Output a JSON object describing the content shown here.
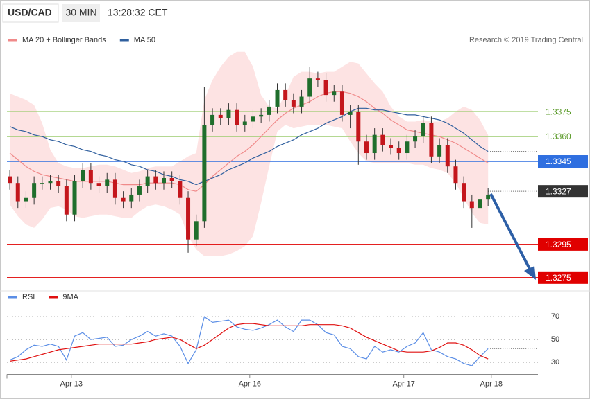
{
  "header": {
    "symbol": "USD/CAD",
    "interval": "30 MIN",
    "time": "13:28:32 CET",
    "credit": "Research © 2019 Trading Central"
  },
  "chart_data": [
    {
      "type": "candlestick",
      "xlim": [
        -0.35,
        65.15
      ],
      "ylim": [
        1.3267,
        1.3413
      ],
      "up_color": "#1f6e2c",
      "down_color": "#c4161c",
      "open": [
        1.3336,
        1.3332,
        1.3321,
        1.3323,
        1.3332,
        1.3332,
        1.3333,
        1.333,
        1.3313,
        1.3333,
        1.334,
        1.3332,
        1.333,
        1.3334,
        1.3323,
        1.3321,
        1.3325,
        1.333,
        1.3336,
        1.3332,
        1.3335,
        1.3333,
        1.3323,
        1.3298,
        1.3309,
        1.3367,
        1.3373,
        1.3371,
        1.3376,
        1.3367,
        1.3369,
        1.3372,
        1.3373,
        1.3378,
        1.3388,
        1.3382,
        1.3378,
        1.3384,
        1.3395,
        1.3394,
        1.3385,
        1.3387,
        1.3373,
        1.3375,
        1.3357,
        1.335,
        1.3361,
        1.3355,
        1.3353,
        1.335,
        1.3357,
        1.336,
        1.3368,
        1.3348,
        1.3355,
        1.3342,
        1.3332,
        1.3321,
        1.3317,
        1.3322
      ],
      "high": [
        1.334,
        1.3336,
        1.3327,
        1.3336,
        1.3336,
        1.3337,
        1.3337,
        1.3334,
        1.3337,
        1.3344,
        1.3344,
        1.3336,
        1.3338,
        1.3338,
        1.3327,
        1.3329,
        1.3334,
        1.334,
        1.334,
        1.3339,
        1.3339,
        1.3337,
        1.3327,
        1.3313,
        1.339,
        1.3377,
        1.3377,
        1.338,
        1.338,
        1.3373,
        1.3376,
        1.3377,
        1.3382,
        1.3392,
        1.3392,
        1.3386,
        1.3388,
        1.3402,
        1.3399,
        1.3398,
        1.3391,
        1.3391,
        1.3379,
        1.3379,
        1.3361,
        1.3365,
        1.3365,
        1.3359,
        1.3357,
        1.3361,
        1.3364,
        1.3372,
        1.3372,
        1.3359,
        1.3359,
        1.3346,
        1.3336,
        1.3325,
        1.3326,
        1.3329
      ],
      "low": [
        1.3328,
        1.3317,
        1.3317,
        1.3319,
        1.3328,
        1.3328,
        1.3326,
        1.3309,
        1.3309,
        1.3329,
        1.3328,
        1.3326,
        1.3326,
        1.3319,
        1.3317,
        1.3317,
        1.3321,
        1.3326,
        1.3328,
        1.3328,
        1.3329,
        1.3319,
        1.329,
        1.3294,
        1.3305,
        1.3363,
        1.3367,
        1.3367,
        1.3363,
        1.3363,
        1.3365,
        1.3368,
        1.3369,
        1.3374,
        1.3378,
        1.3374,
        1.3374,
        1.338,
        1.339,
        1.3381,
        1.3381,
        1.3369,
        1.3365,
        1.3343,
        1.3346,
        1.3346,
        1.3351,
        1.3349,
        1.3346,
        1.3346,
        1.3353,
        1.3356,
        1.3344,
        1.3344,
        1.3338,
        1.3328,
        1.3317,
        1.3305,
        1.3313,
        1.3318
      ],
      "close": [
        1.3332,
        1.3321,
        1.3323,
        1.3332,
        1.3332,
        1.3333,
        1.333,
        1.3313,
        1.3333,
        1.334,
        1.3332,
        1.333,
        1.3334,
        1.3323,
        1.3321,
        1.3325,
        1.333,
        1.3336,
        1.3332,
        1.3335,
        1.3333,
        1.3323,
        1.3298,
        1.3309,
        1.3367,
        1.3373,
        1.3371,
        1.3376,
        1.3367,
        1.3369,
        1.3372,
        1.3373,
        1.3378,
        1.3388,
        1.3382,
        1.3378,
        1.3384,
        1.3395,
        1.3394,
        1.3385,
        1.3387,
        1.3373,
        1.3375,
        1.3357,
        1.335,
        1.3361,
        1.3355,
        1.3353,
        1.335,
        1.3357,
        1.336,
        1.3368,
        1.3348,
        1.3355,
        1.3342,
        1.3332,
        1.3321,
        1.3317,
        1.3322,
        1.3325
      ],
      "series": [
        {
          "name": "MA 20 + Bollinger Bands",
          "color": "#f08a8a",
          "band_color": "#fde3e3",
          "values": [
            1.335,
            1.3346,
            1.3342,
            1.3339,
            1.3337,
            1.3336,
            1.3335,
            1.3334,
            1.3333,
            1.3333,
            1.3333,
            1.3333,
            1.3333,
            1.3332,
            1.3331,
            1.3331,
            1.3331,
            1.3332,
            1.3332,
            1.3332,
            1.3332,
            1.3331,
            1.3328,
            1.3327,
            1.3331,
            1.3336,
            1.334,
            1.3344,
            1.3348,
            1.3351,
            1.3355,
            1.336,
            1.3365,
            1.337,
            1.3374,
            1.3377,
            1.3379,
            1.3381,
            1.3384,
            1.3386,
            1.3387,
            1.3387,
            1.3386,
            1.3384,
            1.3381,
            1.3377,
            1.3374,
            1.337,
            1.3367,
            1.3364,
            1.3363,
            1.3362,
            1.3361,
            1.336,
            1.3358,
            1.3356,
            1.3353,
            1.335,
            1.3347,
            1.3344
          ],
          "upper": [
            1.3386,
            1.3384,
            1.3382,
            1.3379,
            1.3368,
            1.3352,
            1.3344,
            1.3342,
            1.3341,
            1.3341,
            1.3342,
            1.3343,
            1.3343,
            1.3342,
            1.334,
            1.3338,
            1.3339,
            1.3341,
            1.3342,
            1.3342,
            1.3342,
            1.3345,
            1.3348,
            1.335,
            1.3382,
            1.3394,
            1.3402,
            1.3408,
            1.3411,
            1.3411,
            1.3402,
            1.3385,
            1.3378,
            1.3377,
            1.3385,
            1.3396,
            1.3399,
            1.3399,
            1.3398,
            1.3399,
            1.3399,
            1.3402,
            1.3405,
            1.3404,
            1.3398,
            1.3392,
            1.3387,
            1.3378,
            1.3372,
            1.3369,
            1.3369,
            1.337,
            1.3369,
            1.3369,
            1.3371,
            1.3375,
            1.3378,
            1.3376,
            1.337,
            1.3361
          ],
          "lower": [
            1.3319,
            1.3312,
            1.3307,
            1.3305,
            1.331,
            1.3317,
            1.3318,
            1.3316,
            1.3312,
            1.3311,
            1.3312,
            1.3313,
            1.3313,
            1.3312,
            1.3311,
            1.3311,
            1.3315,
            1.3318,
            1.3319,
            1.3318,
            1.3316,
            1.3313,
            1.33,
            1.3292,
            1.3288,
            1.3288,
            1.3288,
            1.3289,
            1.3291,
            1.3294,
            1.33,
            1.332,
            1.3342,
            1.3363,
            1.3367,
            1.3365,
            1.3366,
            1.3367,
            1.3367,
            1.3367,
            1.3366,
            1.3365,
            1.3357,
            1.335,
            1.3345,
            1.3344,
            1.3344,
            1.3344,
            1.3344,
            1.3344,
            1.3343,
            1.3343,
            1.3341,
            1.334,
            1.3338,
            1.3332,
            1.3323,
            1.3314,
            1.3308,
            1.3307
          ]
        },
        {
          "name": "MA 50",
          "color": "#2f5f9e",
          "values": [
            1.3366,
            1.3364,
            1.3363,
            1.3361,
            1.336,
            1.3358,
            1.3357,
            1.3355,
            1.3354,
            1.3352,
            1.3351,
            1.3349,
            1.3348,
            1.3346,
            1.3345,
            1.3343,
            1.3342,
            1.334,
            1.3339,
            1.3337,
            1.3336,
            1.3334,
            1.3333,
            1.3331,
            1.3333,
            1.3335,
            1.3337,
            1.334,
            1.3342,
            1.3344,
            1.3347,
            1.3349,
            1.3351,
            1.3354,
            1.3356,
            1.3358,
            1.3361,
            1.3363,
            1.3365,
            1.3368,
            1.337,
            1.3372,
            1.3375,
            1.3377,
            1.3377,
            1.3376,
            1.3376,
            1.3375,
            1.3374,
            1.3373,
            1.3373,
            1.3372,
            1.3371,
            1.337,
            1.3368,
            1.3365,
            1.3362,
            1.3358,
            1.3354,
            1.3351
          ]
        }
      ],
      "levels": [
        {
          "value": 1.3375,
          "label": "1.3375",
          "color": "#9bcc6e",
          "style": "text",
          "line": "solid"
        },
        {
          "value": 1.336,
          "label": "1.3360",
          "color": "#9bcc6e",
          "style": "text",
          "line": "solid"
        },
        {
          "value": 1.3345,
          "label": "1.3345",
          "color": "#2f6fe0",
          "style": "box",
          "line": "solid"
        },
        {
          "value": 1.3327,
          "label": "1.3327",
          "color": "#333333",
          "style": "box",
          "line": "dotted"
        },
        {
          "value": 1.3295,
          "label": "1.3295",
          "color": "#e00000",
          "style": "box",
          "line": "solid"
        },
        {
          "value": 1.3275,
          "label": "1.3275",
          "color": "#e00000",
          "style": "box",
          "line": "solid"
        }
      ]
    },
    {
      "type": "line",
      "xlim": [
        -0.35,
        65.15
      ],
      "ylim": [
        20,
        78
      ],
      "yticks": [
        30,
        50,
        70
      ],
      "grid": true,
      "xticks": [
        {
          "value": 7.6,
          "label": "Apr 13"
        },
        {
          "value": 29.6,
          "label": "Apr 16"
        },
        {
          "value": 48.6,
          "label": "Apr 17"
        },
        {
          "value": 59.4,
          "label": "Apr 18"
        }
      ],
      "series": [
        {
          "name": "RSI",
          "color": "#5b8ee6",
          "values": [
            32,
            35,
            41,
            45,
            44,
            46,
            44,
            32,
            53,
            56,
            50,
            51,
            52,
            44,
            45,
            50,
            53,
            57,
            53,
            55,
            53,
            44,
            29,
            41,
            70,
            65,
            66,
            67,
            61,
            59,
            58,
            60,
            63,
            67,
            61,
            57,
            67,
            67,
            63,
            56,
            54,
            44,
            42,
            35,
            33,
            44,
            39,
            41,
            39,
            44,
            47,
            56,
            41,
            39,
            35,
            33,
            29,
            27,
            35,
            42
          ]
        },
        {
          "name": "9MA",
          "color": "#e01010",
          "values": [
            31,
            32,
            33,
            35,
            37,
            39,
            41,
            42,
            43,
            44,
            45,
            46,
            46,
            46,
            46,
            46,
            47,
            48,
            50,
            51,
            52,
            50,
            46,
            42,
            45,
            50,
            55,
            60,
            63,
            64,
            64,
            63,
            62,
            62,
            62,
            62,
            62,
            63,
            63,
            63,
            63,
            62,
            60,
            56,
            52,
            49,
            46,
            43,
            40,
            39,
            39,
            39,
            40,
            43,
            47,
            47,
            45,
            41,
            36,
            33
          ]
        }
      ]
    }
  ]
}
